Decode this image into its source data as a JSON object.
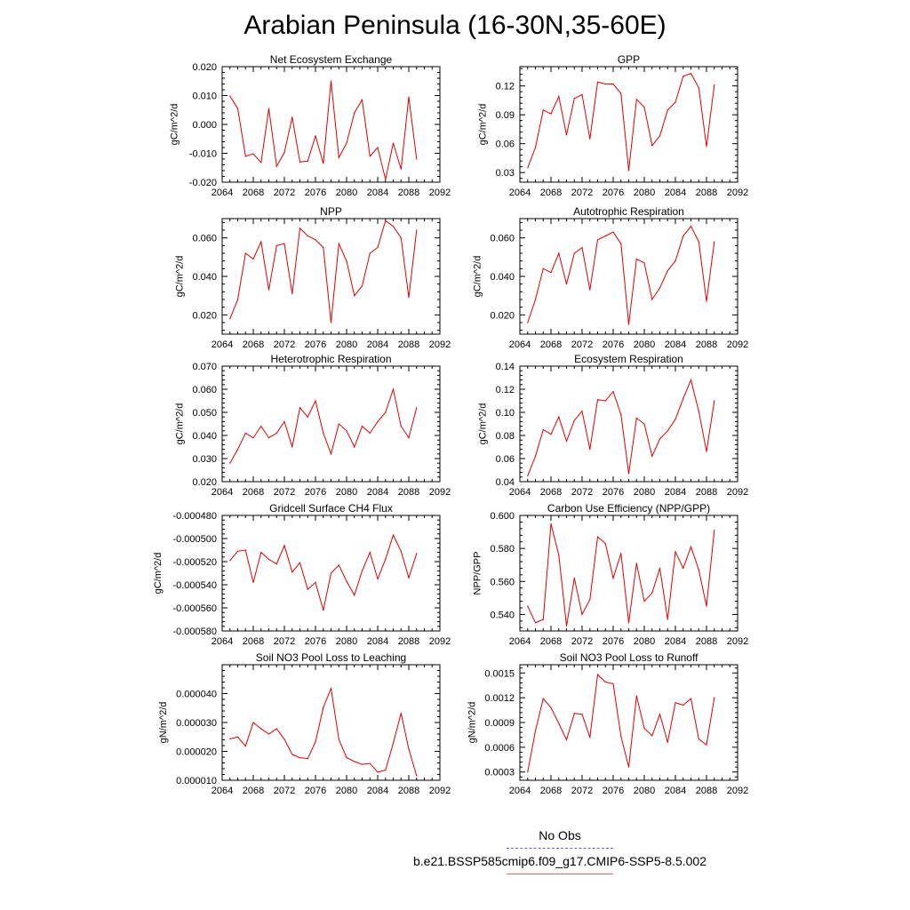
{
  "title": "Arabian Peninsula (16-30N,35-60E)",
  "legend": {
    "obs_label": "No Obs",
    "obs_color": "#6666cc",
    "model_label": "b.e21.BSSP585cmip6.f09_g17.CMIP6-SSP5-8.5.002",
    "model_color": "#e8606a"
  },
  "chart_data": [
    {
      "type": "line",
      "title": "Net Ecosystem Exchange",
      "ylabel": "gC/m^2/d",
      "xlim": [
        2064,
        2092
      ],
      "ylim": [
        -0.02,
        0.02
      ],
      "xticks": [
        "2064",
        "2068",
        "2072",
        "2076",
        "2080",
        "2084",
        "2088",
        "2092"
      ],
      "yticks": [
        "-0.020",
        "-0.010",
        "0.000",
        "0.010",
        "0.020"
      ],
      "ytick_values": [
        -0.02,
        -0.01,
        0.0,
        0.01,
        0.02
      ],
      "x": [
        2065,
        2066,
        2067,
        2068,
        2069,
        2070,
        2071,
        2072,
        2073,
        2074,
        2075,
        2076,
        2077,
        2078,
        2079,
        2080,
        2081,
        2082,
        2083,
        2084,
        2085,
        2086,
        2087,
        2088,
        2089
      ],
      "values": [
        0.0098,
        0.0055,
        -0.011,
        -0.0102,
        -0.0132,
        0.0055,
        -0.0145,
        -0.0098,
        0.0025,
        -0.013,
        -0.0127,
        -0.004,
        -0.0135,
        0.015,
        -0.0115,
        -0.0065,
        0.004,
        0.0085,
        -0.011,
        -0.008,
        -0.019,
        -0.0065,
        -0.0155,
        0.0095,
        -0.012
      ]
    },
    {
      "type": "line",
      "title": "GPP",
      "ylabel": "gC/m^2/d",
      "xlim": [
        2064,
        2092
      ],
      "ylim": [
        0.02,
        0.14
      ],
      "xticks": [
        "2064",
        "2068",
        "2072",
        "2076",
        "2080",
        "2084",
        "2088",
        "2092"
      ],
      "yticks": [
        "0.03",
        "0.06",
        "0.09",
        "0.12"
      ],
      "ytick_values": [
        0.03,
        0.06,
        0.09,
        0.12
      ],
      "x": [
        2065,
        2066,
        2067,
        2068,
        2069,
        2070,
        2071,
        2072,
        2073,
        2074,
        2075,
        2076,
        2077,
        2078,
        2079,
        2080,
        2081,
        2082,
        2083,
        2084,
        2085,
        2086,
        2087,
        2088,
        2089
      ],
      "values": [
        0.035,
        0.056,
        0.095,
        0.091,
        0.109,
        0.069,
        0.107,
        0.111,
        0.065,
        0.124,
        0.122,
        0.122,
        0.112,
        0.032,
        0.106,
        0.098,
        0.058,
        0.068,
        0.095,
        0.103,
        0.13,
        0.133,
        0.118,
        0.057,
        0.121
      ]
    },
    {
      "type": "line",
      "title": "NPP",
      "ylabel": "gC/m^2/d",
      "xlim": [
        2064,
        2092
      ],
      "ylim": [
        0.01,
        0.07
      ],
      "xticks": [
        "2064",
        "2068",
        "2072",
        "2076",
        "2080",
        "2084",
        "2088",
        "2092"
      ],
      "yticks": [
        "0.020",
        "0.040",
        "0.060"
      ],
      "ytick_values": [
        0.02,
        0.04,
        0.06
      ],
      "x": [
        2065,
        2066,
        2067,
        2068,
        2069,
        2070,
        2071,
        2072,
        2073,
        2074,
        2075,
        2076,
        2077,
        2078,
        2079,
        2080,
        2081,
        2082,
        2083,
        2084,
        2085,
        2086,
        2087,
        2088,
        2089
      ],
      "values": [
        0.018,
        0.028,
        0.052,
        0.049,
        0.058,
        0.033,
        0.056,
        0.057,
        0.031,
        0.065,
        0.061,
        0.059,
        0.055,
        0.016,
        0.057,
        0.048,
        0.03,
        0.035,
        0.052,
        0.055,
        0.069,
        0.066,
        0.06,
        0.029,
        0.064
      ]
    },
    {
      "type": "line",
      "title": "Autotrophic Respiration",
      "ylabel": "gC/m^2/d",
      "xlim": [
        2064,
        2092
      ],
      "ylim": [
        0.01,
        0.07
      ],
      "xticks": [
        "2064",
        "2068",
        "2072",
        "2076",
        "2080",
        "2084",
        "2088",
        "2092"
      ],
      "yticks": [
        "0.020",
        "0.040",
        "0.060"
      ],
      "ytick_values": [
        0.02,
        0.04,
        0.06
      ],
      "x": [
        2065,
        2066,
        2067,
        2068,
        2069,
        2070,
        2071,
        2072,
        2073,
        2074,
        2075,
        2076,
        2077,
        2078,
        2079,
        2080,
        2081,
        2082,
        2083,
        2084,
        2085,
        2086,
        2087,
        2088,
        2089
      ],
      "values": [
        0.016,
        0.028,
        0.044,
        0.042,
        0.052,
        0.036,
        0.052,
        0.055,
        0.033,
        0.059,
        0.061,
        0.063,
        0.057,
        0.015,
        0.049,
        0.047,
        0.028,
        0.034,
        0.043,
        0.048,
        0.061,
        0.066,
        0.058,
        0.027,
        0.058
      ]
    },
    {
      "type": "line",
      "title": "Heterotrophic Respiration",
      "ylabel": "gC/m^2/d",
      "xlim": [
        2064,
        2092
      ],
      "ylim": [
        0.02,
        0.07
      ],
      "xticks": [
        "2064",
        "2068",
        "2072",
        "2076",
        "2080",
        "2084",
        "2088",
        "2092"
      ],
      "yticks": [
        "0.020",
        "0.030",
        "0.040",
        "0.050",
        "0.060",
        "0.070"
      ],
      "ytick_values": [
        0.02,
        0.03,
        0.04,
        0.05,
        0.06,
        0.07
      ],
      "x": [
        2065,
        2066,
        2067,
        2068,
        2069,
        2070,
        2071,
        2072,
        2073,
        2074,
        2075,
        2076,
        2077,
        2078,
        2079,
        2080,
        2081,
        2082,
        2083,
        2084,
        2085,
        2086,
        2087,
        2088,
        2089
      ],
      "values": [
        0.028,
        0.034,
        0.041,
        0.039,
        0.044,
        0.039,
        0.041,
        0.046,
        0.035,
        0.052,
        0.048,
        0.055,
        0.041,
        0.032,
        0.045,
        0.042,
        0.035,
        0.044,
        0.041,
        0.046,
        0.05,
        0.06,
        0.044,
        0.039,
        0.052
      ]
    },
    {
      "type": "line",
      "title": "Ecosystem Respiration",
      "ylabel": "gC/m^2/d",
      "xlim": [
        2064,
        2092
      ],
      "ylim": [
        0.04,
        0.14
      ],
      "xticks": [
        "2064",
        "2068",
        "2072",
        "2076",
        "2080",
        "2084",
        "2088",
        "2092"
      ],
      "yticks": [
        "0.04",
        "0.06",
        "0.08",
        "0.10",
        "0.12",
        "0.14"
      ],
      "ytick_values": [
        0.04,
        0.06,
        0.08,
        0.1,
        0.12,
        0.14
      ],
      "x": [
        2065,
        2066,
        2067,
        2068,
        2069,
        2070,
        2071,
        2072,
        2073,
        2074,
        2075,
        2076,
        2077,
        2078,
        2079,
        2080,
        2081,
        2082,
        2083,
        2084,
        2085,
        2086,
        2087,
        2088,
        2089
      ],
      "values": [
        0.045,
        0.062,
        0.085,
        0.081,
        0.096,
        0.075,
        0.093,
        0.101,
        0.068,
        0.111,
        0.11,
        0.118,
        0.098,
        0.047,
        0.095,
        0.09,
        0.062,
        0.077,
        0.084,
        0.094,
        0.112,
        0.128,
        0.101,
        0.066,
        0.11
      ]
    },
    {
      "type": "line",
      "title": "Gridcell Surface CH4 Flux",
      "ylabel": "gC/m^2/d",
      "xlim": [
        2064,
        2092
      ],
      "ylim": [
        -0.00058,
        -0.00048
      ],
      "xticks": [
        "2064",
        "2068",
        "2072",
        "2076",
        "2080",
        "2084",
        "2088",
        "2092"
      ],
      "yticks": [
        "-0.000580",
        "-0.000560",
        "-0.000540",
        "-0.000520",
        "-0.000500",
        "-0.000480"
      ],
      "ytick_values": [
        -0.00058,
        -0.00056,
        -0.00054,
        -0.00052,
        -0.0005,
        -0.00048
      ],
      "x": [
        2065,
        2066,
        2067,
        2068,
        2069,
        2070,
        2071,
        2072,
        2073,
        2074,
        2075,
        2076,
        2077,
        2078,
        2079,
        2080,
        2081,
        2082,
        2083,
        2084,
        2085,
        2086,
        2087,
        2088,
        2089
      ],
      "values": [
        -0.000519,
        -0.000511,
        -0.00051,
        -0.000538,
        -0.000512,
        -0.000518,
        -0.000522,
        -0.000506,
        -0.000529,
        -0.000521,
        -0.000544,
        -0.000538,
        -0.000562,
        -0.00053,
        -0.000523,
        -0.000537,
        -0.000549,
        -0.000528,
        -0.000512,
        -0.000535,
        -0.000518,
        -0.000497,
        -0.000511,
        -0.000534,
        -0.000513
      ]
    },
    {
      "type": "line",
      "title": "Carbon Use Efficiency (NPP/GPP)",
      "ylabel": "NPP/GPP",
      "xlim": [
        2064,
        2092
      ],
      "ylim": [
        0.53,
        0.6
      ],
      "xticks": [
        "2064",
        "2068",
        "2072",
        "2076",
        "2080",
        "2084",
        "2088",
        "2092"
      ],
      "yticks": [
        "0.540",
        "0.560",
        "0.580",
        "0.600"
      ],
      "ytick_values": [
        0.54,
        0.56,
        0.58,
        0.6
      ],
      "x": [
        2065,
        2066,
        2067,
        2068,
        2069,
        2070,
        2071,
        2072,
        2073,
        2074,
        2075,
        2076,
        2077,
        2078,
        2079,
        2080,
        2081,
        2082,
        2083,
        2084,
        2085,
        2086,
        2087,
        2088,
        2089
      ],
      "values": [
        0.545,
        0.535,
        0.537,
        0.595,
        0.576,
        0.533,
        0.562,
        0.54,
        0.549,
        0.587,
        0.583,
        0.562,
        0.577,
        0.535,
        0.571,
        0.548,
        0.553,
        0.568,
        0.537,
        0.578,
        0.568,
        0.581,
        0.567,
        0.545,
        0.591
      ]
    },
    {
      "type": "line",
      "title": "Soil NO3 Pool Loss to Leaching",
      "ylabel": "gN/m^2/d",
      "xlim": [
        2064,
        2092
      ],
      "ylim": [
        1e-05,
        5e-05
      ],
      "xticks": [
        "2064",
        "2068",
        "2072",
        "2076",
        "2080",
        "2084",
        "2088",
        "2092"
      ],
      "yticks": [
        "0.000010",
        "0.000020",
        "0.000030",
        "0.000040"
      ],
      "ytick_values": [
        1e-05,
        2e-05,
        3e-05,
        4e-05
      ],
      "x": [
        2065,
        2066,
        2067,
        2068,
        2069,
        2070,
        2071,
        2072,
        2073,
        2074,
        2075,
        2076,
        2077,
        2078,
        2079,
        2080,
        2081,
        2082,
        2083,
        2084,
        2085,
        2086,
        2087,
        2088,
        2089
      ],
      "values": [
        2.43e-05,
        2.5e-05,
        2.18e-05,
        3e-05,
        2.78e-05,
        2.6e-05,
        2.78e-05,
        2.42e-05,
        1.9e-05,
        1.78e-05,
        1.75e-05,
        2.33e-05,
        3.52e-05,
        4.18e-05,
        2.42e-05,
        1.78e-05,
        1.65e-05,
        1.55e-05,
        1.58e-05,
        1.28e-05,
        1.35e-05,
        2.28e-05,
        3.32e-05,
        2.08e-05,
        1.15e-05
      ]
    },
    {
      "type": "line",
      "title": "Soil NO3 Pool Loss to Runoff",
      "ylabel": "gN/m^2/d",
      "xlim": [
        2064,
        2092
      ],
      "ylim": [
        0.0002,
        0.0016
      ],
      "xticks": [
        "2064",
        "2068",
        "2072",
        "2076",
        "2080",
        "2084",
        "2088",
        "2092"
      ],
      "yticks": [
        "0.0003",
        "0.0006",
        "0.0009",
        "0.0012",
        "0.0015"
      ],
      "ytick_values": [
        0.0003,
        0.0006,
        0.0009,
        0.0012,
        0.0015
      ],
      "x": [
        2065,
        2066,
        2067,
        2068,
        2069,
        2070,
        2071,
        2072,
        2073,
        2074,
        2075,
        2076,
        2077,
        2078,
        2079,
        2080,
        2081,
        2082,
        2083,
        2084,
        2085,
        2086,
        2087,
        2088,
        2089
      ],
      "values": [
        0.0003,
        0.0008,
        0.00119,
        0.00108,
        0.00089,
        0.00069,
        0.00101,
        0.001,
        0.00072,
        0.00148,
        0.00139,
        0.00137,
        0.00073,
        0.00036,
        0.00122,
        0.00083,
        0.00074,
        0.001,
        0.00066,
        0.00114,
        0.00111,
        0.00119,
        0.0007,
        0.00063,
        0.0012
      ]
    }
  ]
}
